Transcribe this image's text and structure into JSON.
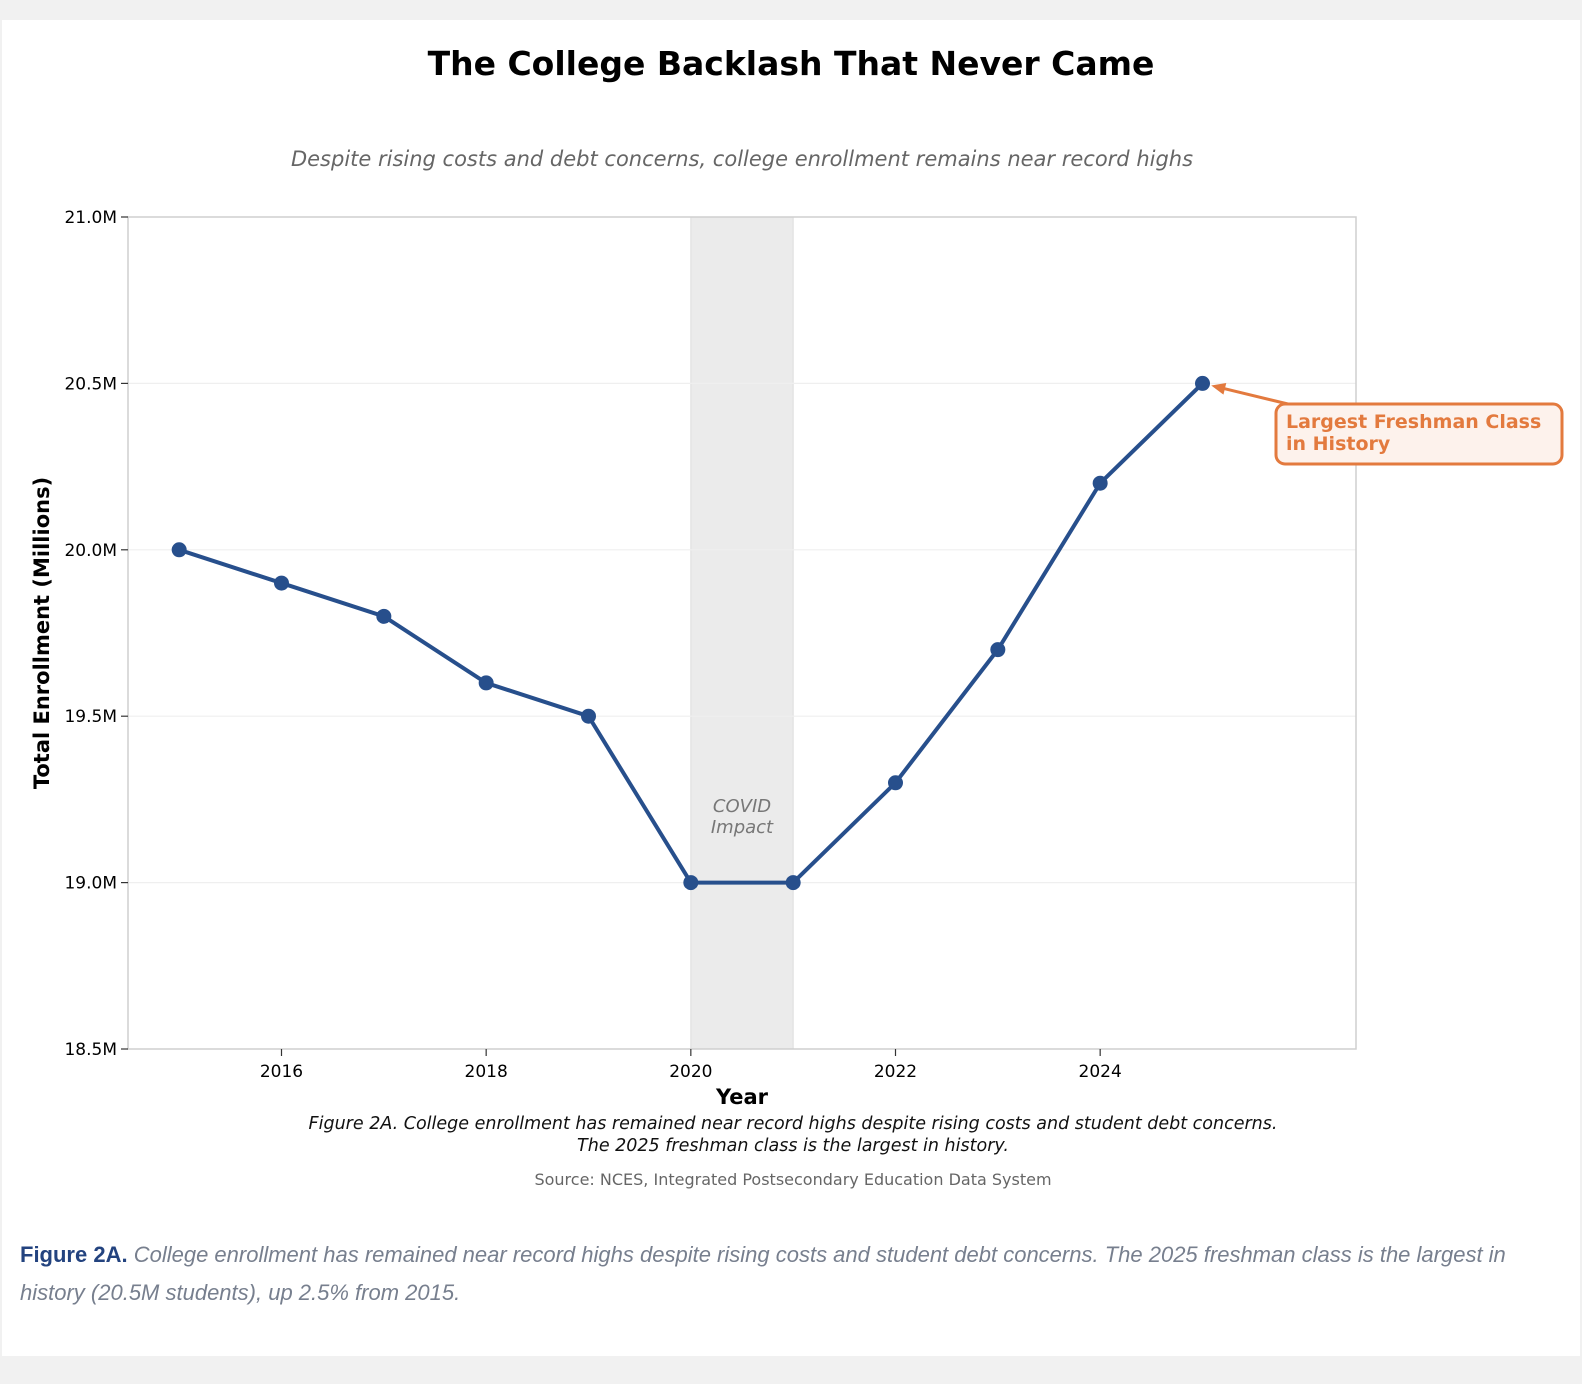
{
  "chart_data": {
    "type": "line",
    "title": "The College Backlash That Never Came",
    "subtitle": "Despite rising costs and debt concerns, college enrollment remains near record highs",
    "xlabel": "Year",
    "ylabel": "Total Enrollment (Millions)",
    "x": [
      2015,
      2016,
      2017,
      2018,
      2019,
      2020,
      2021,
      2022,
      2023,
      2024,
      2025
    ],
    "series": [
      {
        "name": "Total Enrollment",
        "values": [
          20.0,
          19.9,
          19.8,
          19.6,
          19.5,
          19.0,
          19.0,
          19.3,
          19.7,
          20.2,
          20.5
        ]
      }
    ],
    "xlim": [
      2014.5,
      2026.5
    ],
    "ylim": [
      18.5,
      21.0
    ],
    "xticks": [
      2016,
      2018,
      2020,
      2022,
      2024
    ],
    "yticks": [
      18.5,
      19.0,
      19.5,
      20.0,
      20.5,
      21.0
    ],
    "ytick_labels": [
      "18.5M",
      "19.0M",
      "19.5M",
      "20.0M",
      "20.5M",
      "21.0M"
    ],
    "grid": true,
    "shaded_region": {
      "x_start": 2020,
      "x_end": 2021,
      "label_line1": "COVID",
      "label_line2": "Impact"
    },
    "annotation": {
      "x": 2025,
      "y": 20.5,
      "line1": "Largest Freshman Class",
      "line2": "in History"
    },
    "figure_note_line1": "Figure 2A. College enrollment has remained near record highs despite rising costs and student debt concerns.",
    "figure_note_line2": "The 2025 freshman class is the largest in history.",
    "source": "Source: NCES, Integrated Postsecondary Education Data System"
  },
  "caption": {
    "label": "Figure 2A.",
    "text": "College enrollment has remained near record highs despite rising costs and student debt concerns. The 2025 freshman class is the largest in history (20.5M students), up 2.5% from 2015."
  },
  "colors": {
    "line": "#274f8c",
    "annotation": "#e37a3e",
    "annotation_fill": "#fdf2ec",
    "shade": "#ebebeb"
  }
}
